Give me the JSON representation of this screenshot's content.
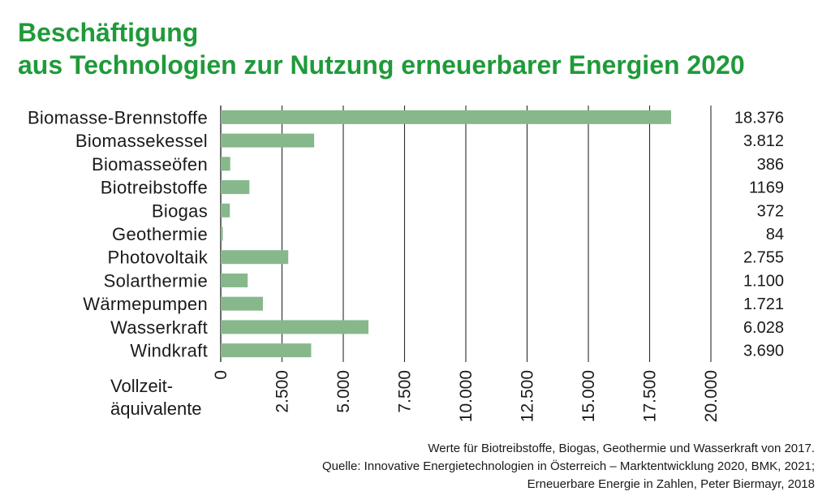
{
  "chart_data": {
    "type": "bar",
    "orientation": "horizontal",
    "title": [
      "Beschäftigung",
      "aus Technologien zur Nutzung erneuerbarer Energien 2020"
    ],
    "categories": [
      "Biomasse-Brennstoffe",
      "Biomassekessel",
      "Biomasseöfen",
      "Biotreibstoffe",
      "Biogas",
      "Geothermie",
      "Photovoltaik",
      "Solarthermie",
      "Wärmepumpen",
      "Wasserkraft",
      "Windkraft"
    ],
    "values": [
      18376,
      3812,
      386,
      1169,
      372,
      84,
      2755,
      1100,
      1721,
      6028,
      3690
    ],
    "value_labels": [
      "18.376",
      "3.812",
      "386",
      "1169",
      "372",
      "84",
      "2.755",
      "1.100",
      "1.721",
      "6.028",
      "3.690"
    ],
    "xlabel": [
      "Vollzeit-",
      "äquivalente"
    ],
    "xlim": [
      0,
      20000
    ],
    "xticks": [
      0,
      2500,
      5000,
      7500,
      10000,
      12500,
      15000,
      17500,
      20000
    ],
    "xtick_labels": [
      "0",
      "2.500",
      "5.000",
      "7.500",
      "10.000",
      "12.500",
      "15.000",
      "17.500",
      "20.000"
    ],
    "grid": "vertical",
    "bar_color": "#86b88b",
    "title_color": "#1f9a3a",
    "notes": [
      "Werte für Biotreibstoffe, Biogas, Geothermie und Wasserkraft von 2017.",
      "Quelle: Innovative Energietechnologien in Österreich – Marktentwicklung 2020, BMK, 2021;",
      "Erneuerbare Energie in Zahlen, Peter Biermayr, 2018"
    ]
  }
}
